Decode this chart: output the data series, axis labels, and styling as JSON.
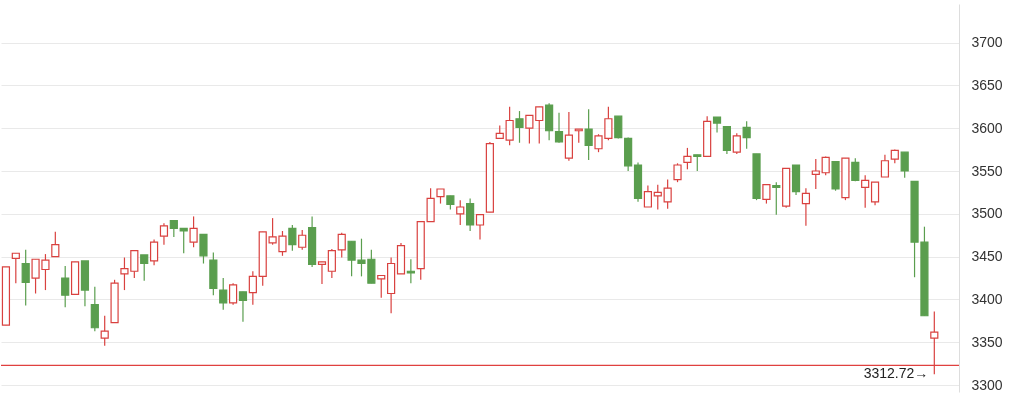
{
  "chart_data": {
    "type": "candlestick",
    "categories": [
      null,
      null,
      null,
      null,
      null,
      null,
      null,
      null,
      null,
      null,
      null,
      null,
      null,
      null,
      null,
      null,
      null,
      null,
      null,
      null,
      null,
      null,
      null,
      null,
      null,
      null,
      null,
      null,
      null,
      null,
      null,
      null,
      null,
      null,
      null,
      null,
      null,
      null,
      null,
      null,
      null,
      null,
      null,
      null,
      null,
      null,
      null,
      null,
      null,
      null,
      null,
      null,
      null,
      null,
      null,
      null,
      null,
      null,
      null,
      null,
      null,
      null,
      null,
      null,
      null,
      null,
      null,
      null,
      null,
      null,
      null,
      null,
      null,
      null,
      null,
      null,
      null,
      null,
      null,
      null,
      null,
      null,
      null,
      null,
      null,
      null,
      null,
      null,
      null,
      null,
      null,
      null,
      null,
      null,
      null
    ],
    "ohlc": [
      [
        3370,
        3438,
        3370,
        3438
      ],
      [
        3448,
        3454,
        3419,
        3454
      ],
      [
        3442,
        3458,
        3393,
        3420
      ],
      [
        3425,
        3447,
        3407,
        3447
      ],
      [
        3435,
        3453,
        3411,
        3446
      ],
      [
        3450,
        3479,
        3450,
        3464
      ],
      [
        3425,
        3439,
        3391,
        3405
      ],
      [
        3406,
        3444,
        3406,
        3444
      ],
      [
        3445,
        3445,
        3392,
        3411
      ],
      [
        3394,
        3415,
        3363,
        3367
      ],
      [
        3355,
        3381,
        3346,
        3363
      ],
      [
        3373,
        3423,
        3373,
        3419
      ],
      [
        3430,
        3449,
        3411,
        3436
      ],
      [
        3433,
        3457,
        3425,
        3457
      ],
      [
        3452,
        3452,
        3422,
        3442
      ],
      [
        3445,
        3470,
        3440,
        3467
      ],
      [
        3474,
        3489,
        3464,
        3486
      ],
      [
        3492,
        3492,
        3473,
        3483
      ],
      [
        3483,
        3483,
        3454,
        3480
      ],
      [
        3467,
        3497,
        3461,
        3483
      ],
      [
        3476,
        3476,
        3442,
        3451
      ],
      [
        3446,
        3455,
        3405,
        3413
      ],
      [
        3411,
        3425,
        3388,
        3396
      ],
      [
        3396,
        3419,
        3394,
        3417
      ],
      [
        3409,
        3409,
        3374,
        3399
      ],
      [
        3408,
        3433,
        3394,
        3427
      ],
      [
        3427,
        3479,
        3416,
        3479
      ],
      [
        3466,
        3495,
        3464,
        3473
      ],
      [
        3456,
        3480,
        3451,
        3474
      ],
      [
        3483,
        3487,
        3457,
        3464
      ],
      [
        3461,
        3481,
        3458,
        3475
      ],
      [
        3484,
        3497,
        3438,
        3441
      ],
      [
        3441,
        3444,
        3418,
        3444
      ],
      [
        3433,
        3459,
        3425,
        3457
      ],
      [
        3458,
        3478,
        3449,
        3476
      ],
      [
        3468,
        3468,
        3427,
        3446
      ],
      [
        3446,
        3471,
        3427,
        3442
      ],
      [
        3447,
        3458,
        3419,
        3419
      ],
      [
        3424,
        3428,
        3402,
        3428
      ],
      [
        3407,
        3449,
        3384,
        3442
      ],
      [
        3430,
        3466,
        3430,
        3463
      ],
      [
        3433,
        3447,
        3419,
        3431
      ],
      [
        3436,
        3491,
        3423,
        3491
      ],
      [
        3491,
        3530,
        3491,
        3518
      ],
      [
        3520,
        3529,
        3512,
        3529
      ],
      [
        3521,
        3521,
        3505,
        3511
      ],
      [
        3500,
        3516,
        3487,
        3508
      ],
      [
        3512,
        3518,
        3480,
        3487
      ],
      [
        3487,
        3499,
        3470,
        3499
      ],
      [
        3502,
        3584,
        3502,
        3582
      ],
      [
        3588,
        3603,
        3588,
        3594
      ],
      [
        3586,
        3625,
        3580,
        3609
      ],
      [
        3611,
        3620,
        3583,
        3601
      ],
      [
        3600,
        3615,
        3582,
        3615
      ],
      [
        3609,
        3625,
        3582,
        3625
      ],
      [
        3627,
        3629,
        3586,
        3597
      ],
      [
        3596,
        3618,
        3583,
        3584
      ],
      [
        3565,
        3619,
        3562,
        3592
      ],
      [
        3597,
        3599,
        3583,
        3599
      ],
      [
        3599,
        3622,
        3563,
        3580
      ],
      [
        3576,
        3593,
        3572,
        3591
      ],
      [
        3588,
        3625,
        3586,
        3611
      ],
      [
        3614,
        3614,
        3588,
        3589
      ],
      [
        3588,
        3589,
        3550,
        3556
      ],
      [
        3557,
        3560,
        3514,
        3518
      ],
      [
        3508,
        3533,
        3508,
        3526
      ],
      [
        3521,
        3534,
        3505,
        3525
      ],
      [
        3514,
        3540,
        3506,
        3530
      ],
      [
        3540,
        3559,
        3537,
        3557
      ],
      [
        3560,
        3577,
        3552,
        3567
      ],
      [
        3569,
        3569,
        3550,
        3567
      ],
      [
        3567,
        3614,
        3567,
        3608
      ],
      [
        3613,
        3613,
        3595,
        3606
      ],
      [
        3602,
        3602,
        3570,
        3574
      ],
      [
        3572,
        3594,
        3570,
        3591
      ],
      [
        3601,
        3608,
        3576,
        3589
      ],
      [
        3570,
        3570,
        3516,
        3518
      ],
      [
        3517,
        3534,
        3512,
        3534
      ],
      [
        3533,
        3537,
        3499,
        3531
      ],
      [
        3509,
        3553,
        3507,
        3553
      ],
      [
        3557,
        3557,
        3522,
        3526
      ],
      [
        3512,
        3530,
        3486,
        3524
      ],
      [
        3546,
        3564,
        3529,
        3550
      ],
      [
        3548,
        3567,
        3545,
        3566
      ],
      [
        3561,
        3561,
        3527,
        3529
      ],
      [
        3519,
        3565,
        3516,
        3565
      ],
      [
        3560,
        3565,
        3538,
        3539
      ],
      [
        3531,
        3545,
        3507,
        3539
      ],
      [
        3514,
        3537,
        3510,
        3537
      ],
      [
        3543,
        3569,
        3543,
        3562
      ],
      [
        3564,
        3575,
        3559,
        3574
      ],
      [
        3572,
        3572,
        3542,
        3550
      ],
      [
        3538,
        3538,
        3426,
        3467
      ],
      [
        3467,
        3485,
        3381,
        3381
      ],
      [
        3355,
        3386,
        3312.72,
        3362
      ]
    ],
    "colors": [
      "#d9413f",
      "#d9413f",
      "#5a9e4e",
      "#d9413f",
      "#d9413f",
      "#d9413f",
      "#5a9e4e",
      "#d9413f",
      "#5a9e4e",
      "#5a9e4e",
      "#d9413f",
      "#d9413f",
      "#d9413f",
      "#d9413f",
      "#5a9e4e",
      "#d9413f",
      "#d9413f",
      "#5a9e4e",
      "#5a9e4e",
      "#d9413f",
      "#5a9e4e",
      "#5a9e4e",
      "#5a9e4e",
      "#d9413f",
      "#5a9e4e",
      "#d9413f",
      "#d9413f",
      "#d9413f",
      "#d9413f",
      "#5a9e4e",
      "#d9413f",
      "#5a9e4e",
      "#d9413f",
      "#d9413f",
      "#d9413f",
      "#5a9e4e",
      "#5a9e4e",
      "#5a9e4e",
      "#d9413f",
      "#d9413f",
      "#d9413f",
      "#5a9e4e",
      "#d9413f",
      "#d9413f",
      "#d9413f",
      "#5a9e4e",
      "#d9413f",
      "#5a9e4e",
      "#d9413f",
      "#d9413f",
      "#d9413f",
      "#d9413f",
      "#5a9e4e",
      "#d9413f",
      "#d9413f",
      "#5a9e4e",
      "#5a9e4e",
      "#d9413f",
      "#d9413f",
      "#5a9e4e",
      "#d9413f",
      "#d9413f",
      "#5a9e4e",
      "#5a9e4e",
      "#5a9e4e",
      "#d9413f",
      "#d9413f",
      "#d9413f",
      "#d9413f",
      "#d9413f",
      "#5a9e4e",
      "#d9413f",
      "#5a9e4e",
      "#5a9e4e",
      "#d9413f",
      "#5a9e4e",
      "#5a9e4e",
      "#d9413f",
      "#5a9e4e",
      "#d9413f",
      "#5a9e4e",
      "#d9413f",
      "#d9413f",
      "#d9413f",
      "#5a9e4e",
      "#d9413f",
      "#5a9e4e",
      "#d9413f",
      "#d9413f",
      "#d9413f",
      "#d9413f",
      "#5a9e4e",
      "#5a9e4e",
      "#5a9e4e",
      "#d9413f"
    ],
    "ylim": [
      3292,
      3745
    ],
    "yticks": [
      3300,
      3350,
      3400,
      3450,
      3500,
      3550,
      3600,
      3650,
      3700
    ],
    "grid": "y",
    "tick_labels": "y",
    "ref_lines": [
      {
        "axis": "y",
        "value": 3323,
        "color": "#e0403f"
      }
    ],
    "annotations": [
      "3312.72→"
    ]
  }
}
